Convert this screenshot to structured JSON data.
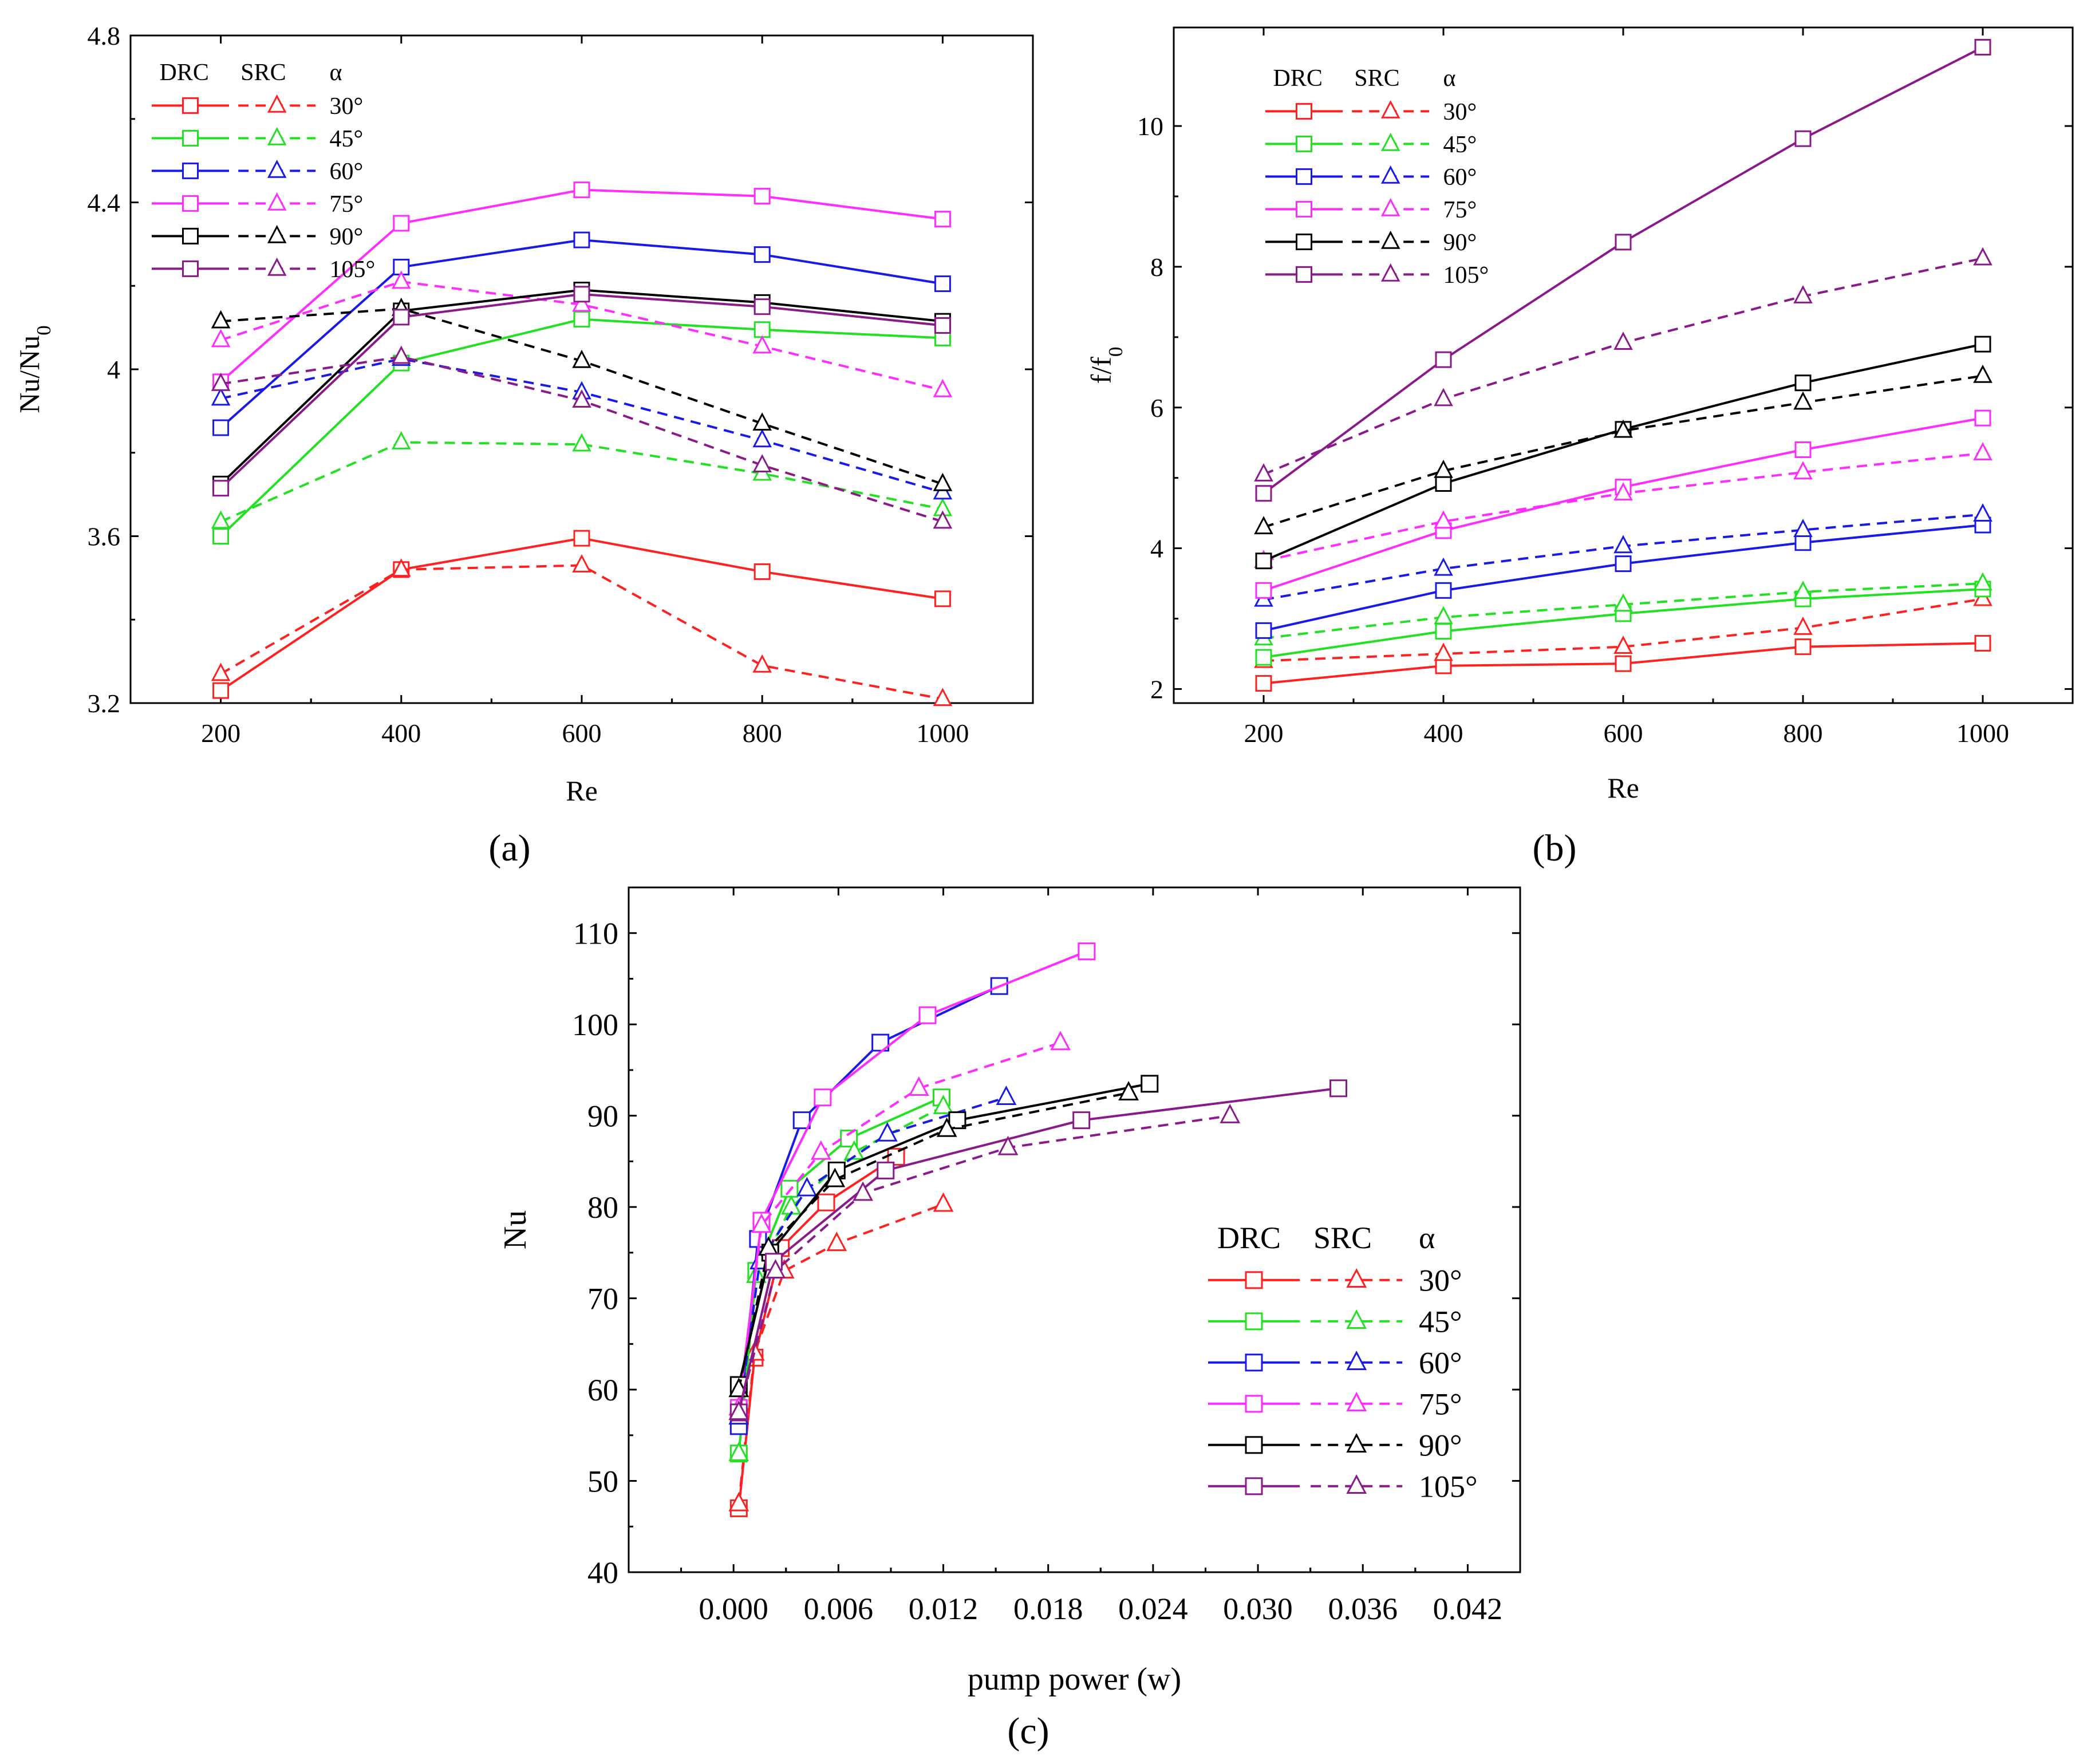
{
  "figure": {
    "panel_labels": [
      "(a)",
      "(b)",
      "(c)"
    ],
    "legend_header": {
      "drc": "DRC",
      "src": "SRC",
      "alpha": "α"
    },
    "angle_labels": [
      "30°",
      "45°",
      "60°",
      "75°",
      "90°",
      "105°"
    ],
    "series_colors": {
      "30°": "#ff2020",
      "45°": "#22e022",
      "60°": "#1a1ae6",
      "75°": "#ff2cff",
      "90°": "#000000",
      "105°": "#8a1a8a"
    },
    "marker_legend": {
      "DRC": "square-marker solid-line",
      "SRC": "triangle-marker dashed-line"
    }
  },
  "chart_data": [
    {
      "panel": "(a)",
      "type": "line",
      "xlabel": "Re",
      "ylabel": "Nu/Nu",
      "ylabel_subscript": "0",
      "xlim": [
        100,
        1100
      ],
      "ylim": [
        3.2,
        4.8
      ],
      "xticks": [
        200,
        400,
        600,
        800,
        1000
      ],
      "yticks": [
        3.2,
        3.6,
        4.0,
        4.4,
        4.8
      ],
      "x": [
        200,
        400,
        600,
        800,
        1000
      ],
      "series": [
        {
          "name": "DRC 30°",
          "values": [
            3.23,
            3.52,
            3.595,
            3.515,
            3.45
          ]
        },
        {
          "name": "SRC 30°",
          "values": [
            3.27,
            3.52,
            3.53,
            3.29,
            3.21
          ]
        },
        {
          "name": "DRC 45°",
          "values": [
            3.6,
            4.015,
            4.12,
            4.095,
            4.075
          ]
        },
        {
          "name": "SRC 45°",
          "values": [
            3.635,
            3.825,
            3.82,
            3.75,
            3.665
          ]
        },
        {
          "name": "DRC 60°",
          "values": [
            3.86,
            4.245,
            4.31,
            4.275,
            4.205
          ]
        },
        {
          "name": "SRC 60°",
          "values": [
            3.93,
            4.025,
            3.945,
            3.83,
            3.705
          ]
        },
        {
          "name": "DRC 75°",
          "values": [
            3.97,
            4.35,
            4.43,
            4.415,
            4.36
          ]
        },
        {
          "name": "SRC 75°",
          "values": [
            4.07,
            4.21,
            4.155,
            4.055,
            3.95
          ]
        },
        {
          "name": "DRC 90°",
          "values": [
            3.725,
            4.14,
            4.19,
            4.16,
            4.115
          ]
        },
        {
          "name": "SRC 90°",
          "values": [
            4.115,
            4.145,
            4.02,
            3.87,
            3.725
          ]
        },
        {
          "name": "DRC 105°",
          "values": [
            3.715,
            4.125,
            4.18,
            4.15,
            4.105
          ]
        },
        {
          "name": "SRC 105°",
          "values": [
            3.965,
            4.03,
            3.925,
            3.77,
            3.635
          ]
        }
      ]
    },
    {
      "panel": "(b)",
      "type": "line",
      "xlabel": "Re",
      "ylabel": "f/f",
      "ylabel_subscript": "0",
      "xlim": [
        100,
        1100
      ],
      "ylim": [
        1.8,
        11.4
      ],
      "xticks": [
        200,
        400,
        600,
        800,
        1000
      ],
      "yticks": [
        2,
        4,
        6,
        8,
        10
      ],
      "x": [
        200,
        400,
        600,
        800,
        1000
      ],
      "series": [
        {
          "name": "DRC 30°",
          "values": [
            2.08,
            2.33,
            2.36,
            2.6,
            2.65
          ]
        },
        {
          "name": "SRC 30°",
          "values": [
            2.4,
            2.5,
            2.6,
            2.87,
            3.28
          ]
        },
        {
          "name": "DRC 45°",
          "values": [
            2.45,
            2.82,
            3.07,
            3.28,
            3.42
          ]
        },
        {
          "name": "SRC 45°",
          "values": [
            2.72,
            3.02,
            3.2,
            3.38,
            3.5
          ]
        },
        {
          "name": "DRC 60°",
          "values": [
            2.83,
            3.4,
            3.78,
            4.08,
            4.33
          ]
        },
        {
          "name": "SRC 60°",
          "values": [
            3.27,
            3.71,
            4.03,
            4.26,
            4.48
          ]
        },
        {
          "name": "DRC 75°",
          "values": [
            3.4,
            4.25,
            4.87,
            5.4,
            5.85
          ]
        },
        {
          "name": "SRC 75°",
          "values": [
            3.82,
            4.38,
            4.78,
            5.08,
            5.35
          ]
        },
        {
          "name": "DRC 90°",
          "values": [
            3.82,
            4.92,
            5.69,
            6.35,
            6.9
          ]
        },
        {
          "name": "SRC 90°",
          "values": [
            4.3,
            5.1,
            5.67,
            6.07,
            6.45
          ]
        },
        {
          "name": "DRC 105°",
          "values": [
            4.78,
            6.68,
            8.35,
            9.82,
            11.12
          ]
        },
        {
          "name": "SRC 105°",
          "values": [
            5.05,
            6.12,
            6.92,
            7.58,
            8.12
          ]
        }
      ]
    },
    {
      "panel": "(c)",
      "type": "line",
      "xlabel": "pump power (w)",
      "ylabel": "Nu",
      "xlim": [
        -0.006,
        0.045
      ],
      "ylim": [
        40,
        115
      ],
      "xticks": [
        "0.000",
        "0.006",
        "0.012",
        "0.018",
        "0.024",
        "0.030",
        "0.036",
        "0.042"
      ],
      "yticks": [
        40,
        50,
        60,
        70,
        80,
        90,
        100,
        110
      ],
      "series": [
        {
          "name": "DRC 30°",
          "x": [
            0.0003,
            0.0012,
            0.0027,
            0.0053,
            0.0093
          ],
          "y": [
            47,
            63.5,
            75.5,
            80.5,
            85.5
          ]
        },
        {
          "name": "SRC 30°",
          "x": [
            0.0003,
            0.0012,
            0.0029,
            0.0059,
            0.012
          ],
          "y": [
            47.5,
            64,
            73,
            76,
            80.3
          ]
        },
        {
          "name": "DRC 45°",
          "x": [
            0.0003,
            0.0013,
            0.0032,
            0.0066,
            0.0119
          ],
          "y": [
            53,
            73,
            82,
            87.5,
            92
          ]
        },
        {
          "name": "SRC 45°",
          "x": [
            0.0003,
            0.0013,
            0.0033,
            0.0069,
            0.012
          ],
          "y": [
            53,
            72.5,
            80,
            86,
            91
          ]
        },
        {
          "name": "DRC 60°",
          "x": [
            0.0003,
            0.0014,
            0.0039,
            0.0084,
            0.0152
          ],
          "y": [
            56,
            76.5,
            89.5,
            98,
            104.2
          ]
        },
        {
          "name": "SRC 60°",
          "x": [
            0.0003,
            0.0015,
            0.0042,
            0.0088,
            0.0156
          ],
          "y": [
            57,
            74,
            82,
            88,
            92
          ]
        },
        {
          "name": "DRC 75°",
          "x": [
            0.0003,
            0.0016,
            0.0051,
            0.0111,
            0.0202
          ],
          "y": [
            58,
            78.5,
            92,
            101,
            108
          ]
        },
        {
          "name": "SRC 75°",
          "x": [
            0.0003,
            0.0016,
            0.005,
            0.0106,
            0.0187
          ],
          "y": [
            58,
            78,
            86,
            93,
            98
          ]
        },
        {
          "name": "DRC 90°",
          "x": [
            0.0003,
            0.0021,
            0.0059,
            0.0128,
            0.0238
          ],
          "y": [
            60.5,
            75,
            84,
            89.5,
            93.5
          ]
        },
        {
          "name": "SRC 90°",
          "x": [
            0.0003,
            0.002,
            0.0058,
            0.0122,
            0.0226
          ],
          "y": [
            60,
            75.5,
            83,
            88.5,
            92.5
          ]
        },
        {
          "name": "DRC 105°",
          "x": [
            0.0003,
            0.0023,
            0.0087,
            0.0199,
            0.0346
          ],
          "y": [
            57.5,
            74,
            84,
            89.5,
            93
          ]
        },
        {
          "name": "SRC 105°",
          "x": [
            0.0003,
            0.0024,
            0.0074,
            0.0157,
            0.0284
          ],
          "y": [
            57.5,
            73,
            81.5,
            86.5,
            90
          ]
        }
      ]
    }
  ]
}
